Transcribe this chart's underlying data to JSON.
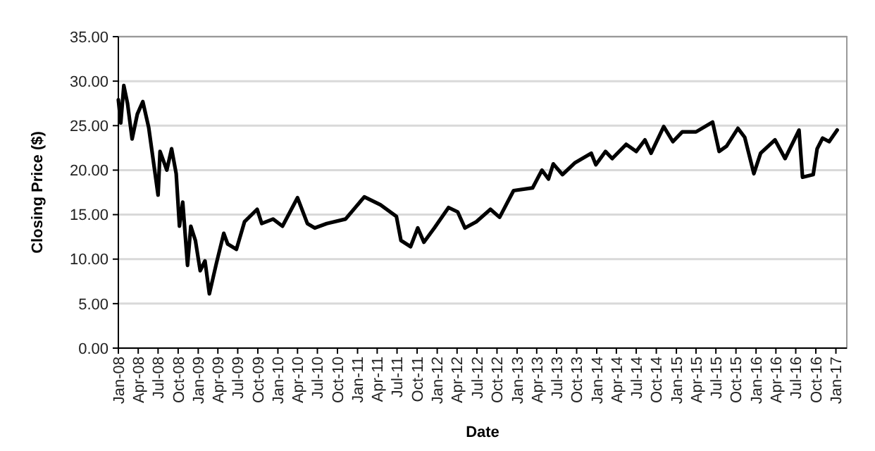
{
  "chart_data": {
    "type": "line",
    "xlabel": "Date",
    "ylabel": "Closing Price ($)",
    "grid": "y",
    "marker": "none",
    "line_style": "solid",
    "xlim": [
      "2008-01-01",
      "2017-02-20"
    ],
    "xticks": [
      {
        "value": "2008-01",
        "label": "Jan-08"
      },
      {
        "value": "2008-04",
        "label": "Apr-08"
      },
      {
        "value": "2008-07",
        "label": "Jul-08"
      },
      {
        "value": "2008-10",
        "label": "Oct-08"
      },
      {
        "value": "2009-01",
        "label": "Jan-09"
      },
      {
        "value": "2009-04",
        "label": "Apr-09"
      },
      {
        "value": "2009-07",
        "label": "Jul-09"
      },
      {
        "value": "2009-10",
        "label": "Oct-09"
      },
      {
        "value": "2010-01",
        "label": "Jan-10"
      },
      {
        "value": "2010-04",
        "label": "Apr-10"
      },
      {
        "value": "2010-07",
        "label": "Jul-10"
      },
      {
        "value": "2010-10",
        "label": "Oct-10"
      },
      {
        "value": "2011-01",
        "label": "Jan-11"
      },
      {
        "value": "2011-04",
        "label": "Apr-11"
      },
      {
        "value": "2011-07",
        "label": "Jul-11"
      },
      {
        "value": "2011-10",
        "label": "Oct-11"
      },
      {
        "value": "2012-01",
        "label": "Jan-12"
      },
      {
        "value": "2012-04",
        "label": "Apr-12"
      },
      {
        "value": "2012-07",
        "label": "Jul-12"
      },
      {
        "value": "2012-10",
        "label": "Oct-12"
      },
      {
        "value": "2013-01",
        "label": "Jan-13"
      },
      {
        "value": "2013-04",
        "label": "Apr-13"
      },
      {
        "value": "2013-07",
        "label": "Jul-13"
      },
      {
        "value": "2013-10",
        "label": "Oct-13"
      },
      {
        "value": "2014-01",
        "label": "Jan-14"
      },
      {
        "value": "2014-04",
        "label": "Apr-14"
      },
      {
        "value": "2014-07",
        "label": "Jul-14"
      },
      {
        "value": "2014-10",
        "label": "Oct-14"
      },
      {
        "value": "2015-01",
        "label": "Jan-15"
      },
      {
        "value": "2015-04",
        "label": "Apr-15"
      },
      {
        "value": "2015-07",
        "label": "Jul-15"
      },
      {
        "value": "2015-10",
        "label": "Oct-15"
      },
      {
        "value": "2016-01",
        "label": "Jan-16"
      },
      {
        "value": "2016-04",
        "label": "Apr-16"
      },
      {
        "value": "2016-07",
        "label": "Jul-16"
      },
      {
        "value": "2016-10",
        "label": "Oct-16"
      },
      {
        "value": "2017-01",
        "label": "Jan-17"
      }
    ],
    "ylim": [
      0,
      35
    ],
    "yticks": [
      {
        "value": 0,
        "label": "0.00"
      },
      {
        "value": 5,
        "label": "5.00"
      },
      {
        "value": 10,
        "label": "10.00"
      },
      {
        "value": 15,
        "label": "15.00"
      },
      {
        "value": 20,
        "label": "20.00"
      },
      {
        "value": 25,
        "label": "25.00"
      },
      {
        "value": 30,
        "label": "30.00"
      },
      {
        "value": 35,
        "label": "35.00"
      }
    ],
    "x": [
      "2008-01-01",
      "2008-01-12",
      "2008-01-26",
      "2008-02-12",
      "2008-03-04",
      "2008-03-28",
      "2008-04-22",
      "2008-05-19",
      "2008-07-01",
      "2008-07-10",
      "2008-08-10",
      "2008-09-01",
      "2008-09-22",
      "2008-10-07",
      "2008-10-22",
      "2008-11-13",
      "2008-11-28",
      "2008-12-19",
      "2009-01-10",
      "2009-02-01",
      "2009-02-21",
      "2009-03-25",
      "2009-04-28",
      "2009-05-16",
      "2009-06-25",
      "2009-08-01",
      "2009-09-28",
      "2009-10-19",
      "2009-12-10",
      "2010-01-22",
      "2010-04-01",
      "2010-05-16",
      "2010-06-19",
      "2010-08-13",
      "2010-11-07",
      "2011-02-01",
      "2011-04-16",
      "2011-06-28",
      "2011-07-19",
      "2011-09-01",
      "2011-10-04",
      "2011-11-01",
      "2011-12-19",
      "2012-02-22",
      "2012-04-04",
      "2012-05-07",
      "2012-06-28",
      "2012-09-01",
      "2012-10-13",
      "2012-12-16",
      "2013-03-13",
      "2013-04-25",
      "2013-05-25",
      "2013-06-16",
      "2013-07-28",
      "2013-09-22",
      "2013-12-07",
      "2013-12-28",
      "2014-02-10",
      "2014-03-13",
      "2014-05-16",
      "2014-07-01",
      "2014-08-10",
      "2014-09-07",
      "2014-11-04",
      "2014-12-16",
      "2015-01-28",
      "2015-04-01",
      "2015-06-16",
      "2015-07-16",
      "2015-08-19",
      "2015-10-10",
      "2015-11-10",
      "2015-12-22",
      "2016-01-22",
      "2016-03-28",
      "2016-05-13",
      "2016-07-16",
      "2016-08-01",
      "2016-09-19",
      "2016-10-07",
      "2016-11-01",
      "2016-12-01",
      "2017-01-07"
    ],
    "series": [
      {
        "color": "#000000",
        "values": [
          27.9,
          25.3,
          29.5,
          27.5,
          23.5,
          26.3,
          27.7,
          24.8,
          17.2,
          22.1,
          20.0,
          22.4,
          19.6,
          13.7,
          16.4,
          9.3,
          13.7,
          12.1,
          8.7,
          9.8,
          6.1,
          9.5,
          12.9,
          11.7,
          11.1,
          14.2,
          15.6,
          14.0,
          14.5,
          13.7,
          16.9,
          14.0,
          13.5,
          14.0,
          14.5,
          17.0,
          16.1,
          14.8,
          12.1,
          11.4,
          13.5,
          11.9,
          13.5,
          15.8,
          15.3,
          13.5,
          14.2,
          15.6,
          14.7,
          17.7,
          18.0,
          20.0,
          19.0,
          20.7,
          19.5,
          20.8,
          21.9,
          20.6,
          22.1,
          21.3,
          22.9,
          22.1,
          23.4,
          21.9,
          24.9,
          23.2,
          24.3,
          24.3,
          25.4,
          22.1,
          22.7,
          24.7,
          23.7,
          19.6,
          21.9,
          23.4,
          21.3,
          24.5,
          19.2,
          19.5,
          22.4,
          23.6,
          23.2,
          24.5
        ]
      }
    ]
  }
}
